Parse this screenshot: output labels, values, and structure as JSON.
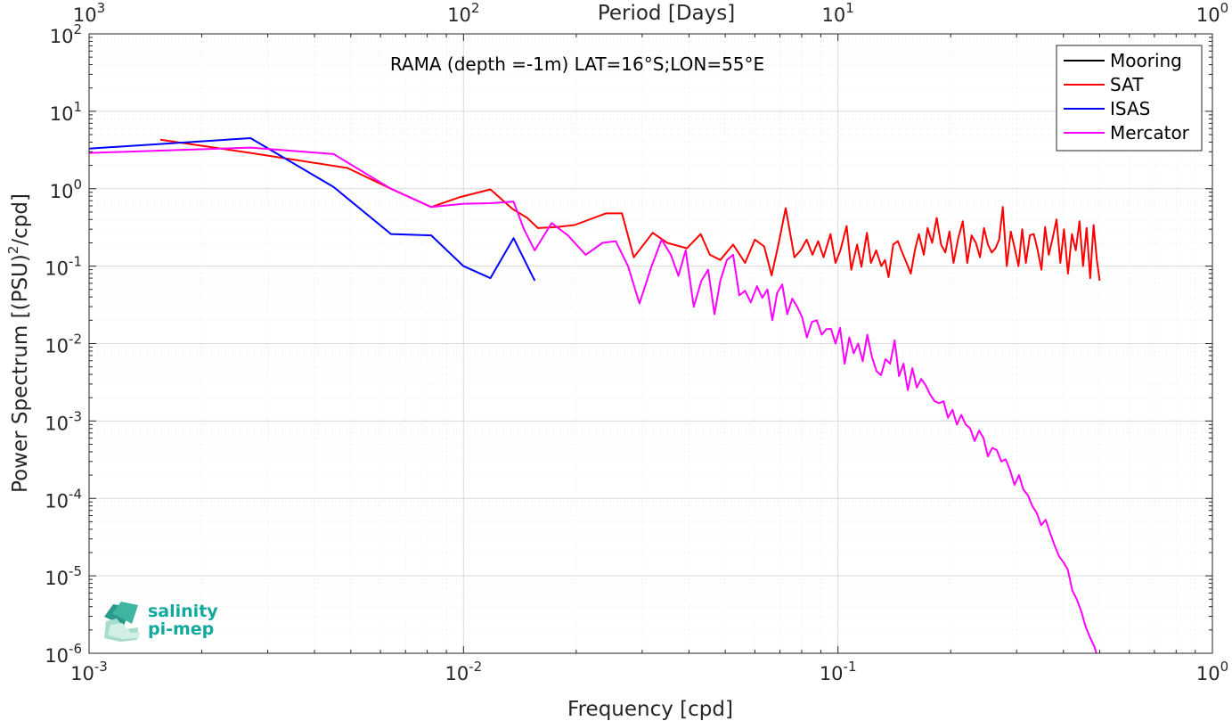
{
  "chart_data": {
    "type": "line",
    "title": "RAMA (depth =-1m) LAT=16°S;LON=55°E",
    "xlabel": "Frequency [cpd]",
    "ylabel": "Power Spectrum [(PSU)²/cpd]",
    "ylabel_parts": {
      "pre": "Power Spectrum [(PSU)",
      "sup": "2",
      "post": "/cpd]"
    },
    "top_xlabel": "Period [Days]",
    "xscale": "log",
    "yscale": "log",
    "xlim": [
      0.001,
      1
    ],
    "ylim": [
      1e-06,
      100
    ],
    "grid": true,
    "legend_position": "top-right",
    "x_ticks": [
      {
        "value": 0.001,
        "base": "10",
        "exp": "-3"
      },
      {
        "value": 0.01,
        "base": "10",
        "exp": "-2"
      },
      {
        "value": 0.1,
        "base": "10",
        "exp": "-1"
      },
      {
        "value": 1,
        "base": "10",
        "exp": "0"
      }
    ],
    "top_ticks": [
      {
        "value": 0.001,
        "base": "10",
        "exp": "3"
      },
      {
        "value": 0.01,
        "base": "10",
        "exp": "2"
      },
      {
        "value": 0.1,
        "base": "10",
        "exp": "1"
      },
      {
        "value": 1,
        "base": "10",
        "exp": "0"
      }
    ],
    "y_ticks": [
      {
        "value": 100,
        "base": "10",
        "exp": "2"
      },
      {
        "value": 10,
        "base": "10",
        "exp": "1"
      },
      {
        "value": 1,
        "base": "10",
        "exp": "0"
      },
      {
        "value": 0.1,
        "base": "10",
        "exp": "-1"
      },
      {
        "value": 0.01,
        "base": "10",
        "exp": "-2"
      },
      {
        "value": 0.001,
        "base": "10",
        "exp": "-3"
      },
      {
        "value": 0.0001,
        "base": "10",
        "exp": "-4"
      },
      {
        "value": 1e-05,
        "base": "10",
        "exp": "-5"
      },
      {
        "value": 1e-06,
        "base": "10",
        "exp": "-6"
      }
    ],
    "series": [
      {
        "name": "Mooring",
        "color": "#000000",
        "x": [],
        "y": []
      },
      {
        "name": "SAT",
        "color": "#ff0000",
        "x": [
          0.00155,
          0.0027,
          0.0049,
          0.0064,
          0.0082,
          0.0098,
          0.0118,
          0.0135,
          0.0148,
          0.0158,
          0.0178,
          0.0198,
          0.024,
          0.0265,
          0.0285,
          0.032,
          0.035,
          0.0395,
          0.043,
          0.0455,
          0.0485,
          0.0525,
          0.0565,
          0.06,
          0.0635,
          0.0665,
          0.0695,
          0.0725,
          0.0765,
          0.0795,
          0.0825,
          0.0855,
          0.0885,
          0.0915,
          0.0955,
          0.0985,
          0.1015,
          0.1055,
          0.1085,
          0.1125,
          0.1155,
          0.1195,
          0.1225,
          0.1265,
          0.1305,
          0.1335,
          0.1365,
          0.1405,
          0.1445,
          0.1485,
          0.1525,
          0.1565,
          0.1605,
          0.1645,
          0.1695,
          0.1735,
          0.1785,
          0.1835,
          0.1885,
          0.1935,
          0.1985,
          0.2035,
          0.2095,
          0.2155,
          0.2215,
          0.2275,
          0.2335,
          0.2395,
          0.2455,
          0.2515,
          0.2575,
          0.2635,
          0.2695,
          0.2755,
          0.2825,
          0.2895,
          0.2965,
          0.3035,
          0.3105,
          0.3175,
          0.3255,
          0.3335,
          0.3415,
          0.3495,
          0.3575,
          0.3655,
          0.3745,
          0.3835,
          0.3925,
          0.4015,
          0.4115,
          0.4215,
          0.4315,
          0.4415,
          0.4515,
          0.4615,
          0.4715,
          0.4815,
          0.4915,
          0.5
        ],
        "y": [
          4.3,
          2.9,
          1.85,
          1.0,
          0.58,
          0.78,
          0.98,
          0.55,
          0.42,
          0.31,
          0.32,
          0.34,
          0.48,
          0.48,
          0.13,
          0.27,
          0.2,
          0.17,
          0.26,
          0.14,
          0.12,
          0.19,
          0.11,
          0.22,
          0.18,
          0.076,
          0.2,
          0.56,
          0.13,
          0.16,
          0.22,
          0.14,
          0.21,
          0.13,
          0.26,
          0.11,
          0.16,
          0.33,
          0.09,
          0.19,
          0.098,
          0.27,
          0.11,
          0.16,
          0.1,
          0.12,
          0.072,
          0.19,
          0.21,
          0.15,
          0.11,
          0.08,
          0.16,
          0.26,
          0.14,
          0.31,
          0.2,
          0.42,
          0.19,
          0.15,
          0.28,
          0.11,
          0.23,
          0.38,
          0.11,
          0.25,
          0.2,
          0.13,
          0.31,
          0.19,
          0.15,
          0.17,
          0.22,
          0.58,
          0.1,
          0.28,
          0.17,
          0.1,
          0.3,
          0.11,
          0.25,
          0.26,
          0.16,
          0.09,
          0.32,
          0.14,
          0.23,
          0.4,
          0.11,
          0.3,
          0.08,
          0.26,
          0.16,
          0.38,
          0.1,
          0.31,
          0.07,
          0.34,
          0.12,
          0.065
        ]
      },
      {
        "name": "ISAS",
        "color": "#0000ff",
        "x": [
          0.001,
          0.0027,
          0.0045,
          0.0064,
          0.0082,
          0.01,
          0.0118,
          0.0136,
          0.0155
        ],
        "y": [
          3.3,
          4.5,
          1.05,
          0.26,
          0.25,
          0.1,
          0.07,
          0.23,
          0.065
        ]
      },
      {
        "name": "Mercator",
        "color": "#ff00ff",
        "x": [
          0.001,
          0.0027,
          0.0045,
          0.0064,
          0.0082,
          0.01,
          0.0118,
          0.0136,
          0.0145,
          0.0155,
          0.0172,
          0.019,
          0.0212,
          0.0235,
          0.0255,
          0.0275,
          0.0295,
          0.0318,
          0.0338,
          0.0358,
          0.0375,
          0.0392,
          0.0412,
          0.0432,
          0.045,
          0.0468,
          0.0485,
          0.0505,
          0.0525,
          0.0545,
          0.0565,
          0.0585,
          0.0608,
          0.0628,
          0.0648,
          0.0668,
          0.0688,
          0.071,
          0.0732,
          0.0755,
          0.0778,
          0.0802,
          0.0826,
          0.0852,
          0.0878,
          0.0905,
          0.0932,
          0.0958,
          0.0985,
          0.1013,
          0.1042,
          0.1072,
          0.1102,
          0.1132,
          0.1165,
          0.1198,
          0.1232,
          0.1268,
          0.1303,
          0.134,
          0.1378,
          0.1417,
          0.1456,
          0.1496,
          0.1537,
          0.158,
          0.1624,
          0.1668,
          0.1714,
          0.1762,
          0.1812,
          0.1862,
          0.1914,
          0.1967,
          0.2022,
          0.2078,
          0.2135,
          0.2194,
          0.2255,
          0.2318,
          0.2382,
          0.2448,
          0.2515,
          0.2585,
          0.2656,
          0.273,
          0.2805,
          0.2882,
          0.2962,
          0.3044,
          0.3128,
          0.3215,
          0.3304,
          0.3395,
          0.349,
          0.3586,
          0.3685,
          0.3787,
          0.3892,
          0.4,
          0.411,
          0.4224,
          0.4342,
          0.4462,
          0.4586,
          0.4714,
          0.4845,
          0.49
        ],
        "y": [
          2.9,
          3.4,
          2.8,
          1.0,
          0.58,
          0.64,
          0.65,
          0.68,
          0.3,
          0.16,
          0.36,
          0.25,
          0.14,
          0.2,
          0.21,
          0.1,
          0.033,
          0.1,
          0.22,
          0.14,
          0.075,
          0.16,
          0.03,
          0.065,
          0.09,
          0.024,
          0.065,
          0.12,
          0.14,
          0.042,
          0.048,
          0.034,
          0.055,
          0.039,
          0.05,
          0.02,
          0.045,
          0.058,
          0.024,
          0.038,
          0.03,
          0.022,
          0.012,
          0.019,
          0.02,
          0.013,
          0.0154,
          0.0155,
          0.01,
          0.016,
          0.0055,
          0.012,
          0.0075,
          0.01,
          0.0059,
          0.013,
          0.0067,
          0.0044,
          0.0039,
          0.0063,
          0.0055,
          0.011,
          0.0038,
          0.0055,
          0.0025,
          0.0048,
          0.0027,
          0.0035,
          0.0029,
          0.0022,
          0.0018,
          0.0017,
          0.0018,
          0.0011,
          0.0014,
          0.0009,
          0.0012,
          0.0009,
          0.0008,
          0.00055,
          0.00075,
          0.0006,
          0.00035,
          0.00045,
          0.00042,
          0.0003,
          0.00032,
          0.00023,
          0.00015,
          0.0002,
          0.00013,
          0.00011,
          8e-05,
          6.5e-05,
          4.5e-05,
          5.3e-05,
          3.6e-05,
          2.5e-05,
          1.8e-05,
          1.5e-05,
          1.2e-05,
          6.5e-06,
          5e-06,
          3.5e-06,
          2.2e-06,
          1.6e-06,
          1.2e-06,
          1e-06
        ]
      }
    ]
  },
  "logo": {
    "line1": "salinity",
    "line2": "pi-mep"
  }
}
